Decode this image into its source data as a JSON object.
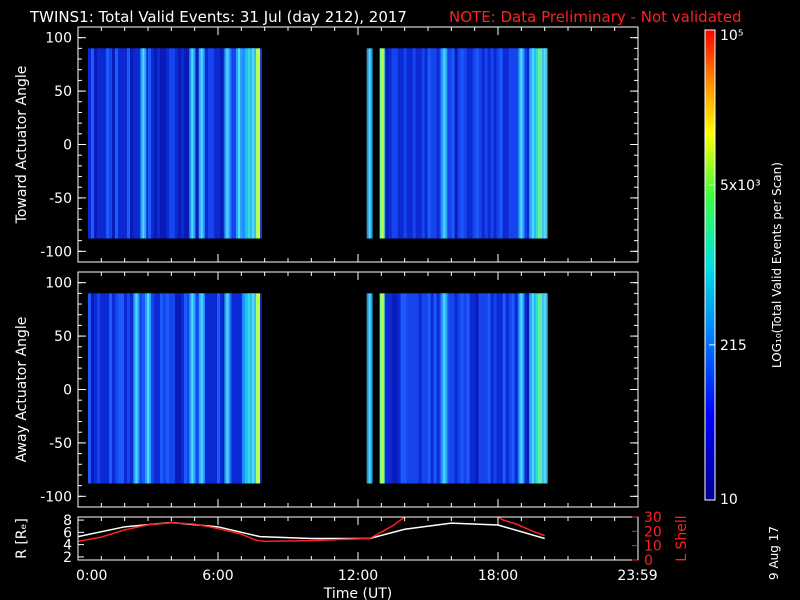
{
  "header": {
    "title": "TWINS1: Total Valid Events: 31 Jul (day 212), 2017",
    "note": "NOTE: Data Preliminary - Not validated",
    "note_color": "#ff2020"
  },
  "footer": {
    "stamp": "9 Aug 17"
  },
  "chart_data": [
    {
      "type": "heatmap",
      "ylabel": "Toward Actuator Angle",
      "x_range_hours": [
        0,
        24
      ],
      "ylim": [
        -110,
        110
      ],
      "y_ticks": [
        100,
        50,
        0,
        -50,
        -100
      ],
      "y_tick_labels": [
        "100",
        "50",
        "0",
        "-50",
        "-100"
      ],
      "data_y_extent": [
        -88,
        90
      ],
      "data_segments_hours": [
        [
          0.0,
          7.8
        ],
        [
          12.5,
          20.1
        ]
      ],
      "bright_columns_hours": [
        2.8,
        4.9,
        5.3,
        6.4,
        6.9,
        7.5,
        12.5,
        15.7,
        19.0,
        19.5,
        20.0
      ]
    },
    {
      "type": "heatmap",
      "ylabel": "Away Actuator Angle",
      "x_range_hours": [
        0,
        24
      ],
      "ylim": [
        -110,
        110
      ],
      "y_ticks": [
        100,
        50,
        0,
        -50,
        -100
      ],
      "y_tick_labels": [
        "100",
        "50",
        "0",
        "-50",
        "-100"
      ],
      "data_y_extent": [
        -88,
        90
      ],
      "data_segments_hours": [
        [
          0.0,
          7.8
        ],
        [
          12.5,
          20.1
        ]
      ],
      "bright_columns_hours": [
        2.5,
        3.0,
        4.9,
        5.3,
        6.4,
        7.5,
        12.5,
        15.7,
        19.0,
        19.5,
        20.0
      ]
    },
    {
      "type": "line",
      "xlabel": "Time (UT)",
      "x_tick_labels": [
        "0:00",
        "6:00",
        "12:00",
        "18:00",
        "23:59"
      ],
      "x_ticks_hours": [
        0,
        6,
        12,
        18,
        23.98
      ],
      "ylabel_left": "R [Rₑ]",
      "y_left_ticks": [
        2,
        4,
        6,
        8
      ],
      "y_left_tick_labels": [
        "2",
        "4",
        "6",
        "8"
      ],
      "ylim_left": [
        1.5,
        8.5
      ],
      "ylabel_right": "L Shell",
      "y_right_ticks": [
        0,
        10,
        20,
        30
      ],
      "y_right_tick_labels": [
        "0",
        "10",
        "20",
        "30"
      ],
      "ylim_right": [
        0,
        30
      ],
      "series": [
        {
          "color": "#ffffff",
          "axis": "left",
          "points": [
            [
              0.0,
              5.3
            ],
            [
              2.0,
              6.9
            ],
            [
              4.0,
              7.6
            ],
            [
              6.0,
              6.9
            ],
            [
              7.8,
              5.3
            ],
            [
              10.0,
              5.0
            ],
            [
              12.5,
              5.0
            ],
            [
              14.0,
              6.5
            ],
            [
              16.0,
              7.5
            ],
            [
              18.0,
              7.2
            ],
            [
              20.0,
              5.0
            ]
          ]
        },
        {
          "color": "#ff2020",
          "axis": "right",
          "points": [
            [
              0.0,
              13
            ],
            [
              1.0,
              16
            ],
            [
              2.0,
              21
            ],
            [
              3.0,
              24.5
            ],
            [
              4.0,
              26
            ],
            [
              5.0,
              25
            ],
            [
              6.0,
              22
            ],
            [
              7.0,
              18
            ],
            [
              7.6,
              14
            ],
            [
              8.0,
              13
            ],
            [
              10.0,
              13.5
            ],
            [
              11.5,
              14.5
            ],
            [
              12.5,
              15
            ],
            [
              13.5,
              24
            ],
            [
              14.0,
              30
            ]
          ]
        },
        {
          "color": "#ff2020",
          "axis": "right",
          "points": [
            [
              18.0,
              30
            ],
            [
              18.2,
              28
            ],
            [
              18.8,
              25
            ],
            [
              19.5,
              20
            ],
            [
              20.0,
              17
            ]
          ]
        }
      ]
    }
  ],
  "colorbar": {
    "label": "LOG₁₀(Total Valid Events per Scan)",
    "tick_labels": [
      "10",
      "215",
      "5x10³",
      "10⁵"
    ],
    "tick_fractions": [
      0.0,
      0.33,
      0.67,
      1.0
    ],
    "colors": [
      "#00008c",
      "#0000ff",
      "#0080ff",
      "#00e0e0",
      "#40ff40",
      "#ffff00",
      "#ff8000",
      "#ff0000"
    ]
  }
}
